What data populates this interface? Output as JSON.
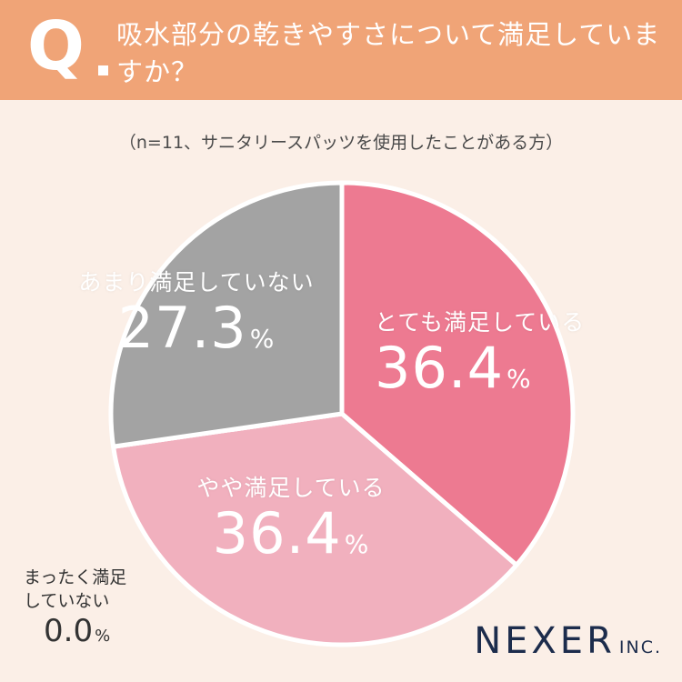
{
  "header": {
    "q_mark": "Q",
    "question": "吸水部分の乾きやすさについて満足していますか？"
  },
  "subtitle": "（n=11、サニタリースパッツを使用したことがある方）",
  "percent_unit": "%",
  "brand": {
    "name": "NEXER",
    "suffix": "INC."
  },
  "chart_data": {
    "type": "pie",
    "n": 11,
    "categories": [
      "とても満足している",
      "やや満足している",
      "まったく満足していない",
      "あまり満足していない"
    ],
    "values": [
      36.4,
      36.4,
      0.0,
      27.3
    ],
    "value_labels": [
      "36.4",
      "36.4",
      "0.0",
      "27.3"
    ],
    "colors": [
      "#ed7a91",
      "#f1b0be",
      "#f6e3ea",
      "#a3a3a3"
    ],
    "label_colors": [
      "#ffffff",
      "#ffffff",
      "#333333",
      "#ffffff"
    ],
    "outside_label_lines": [
      "まったく満足",
      "していない"
    ],
    "start_angle_deg": 0,
    "direction": "clockwise"
  },
  "icons": {
    "q_mark": "question-mark-badge"
  }
}
